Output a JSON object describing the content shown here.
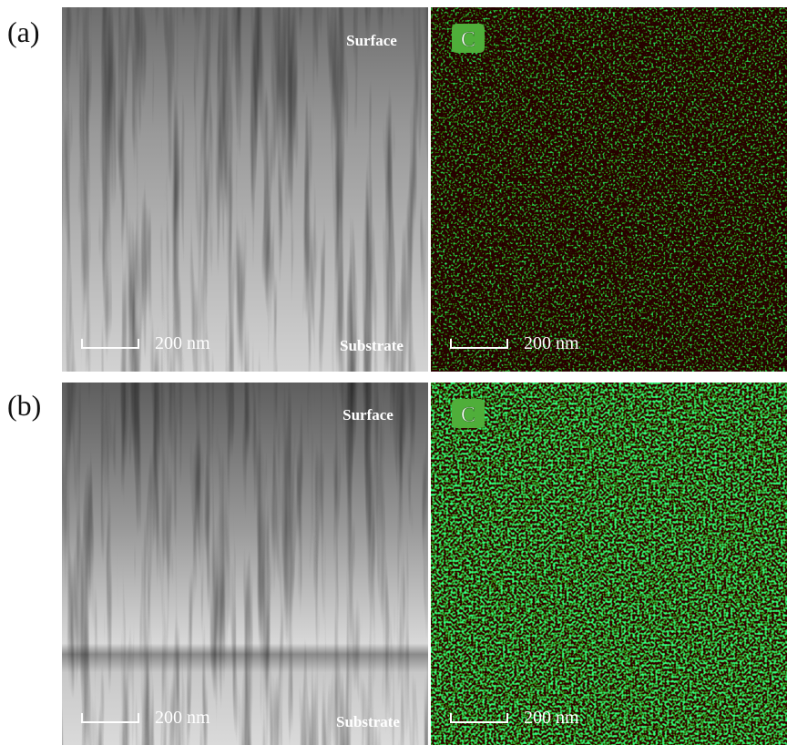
{
  "panels": [
    {
      "label": "(a)",
      "tem": {
        "top": "Surface",
        "bottom": "Substrate",
        "scale": "200 nm"
      },
      "map": {
        "element": "C",
        "scale": "200 nm"
      }
    },
    {
      "label": "(b)",
      "tem": {
        "top": "Surface",
        "bottom": "Substrate",
        "scale": "200 nm"
      },
      "map": {
        "element": "C",
        "scale": "200 nm"
      }
    }
  ]
}
